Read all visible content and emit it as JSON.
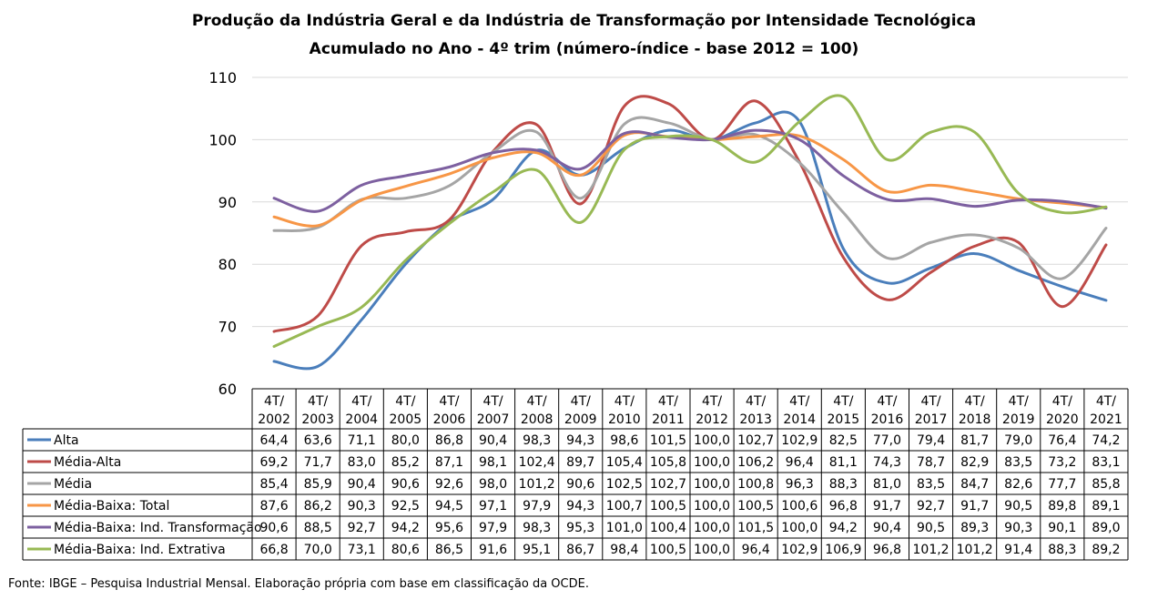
{
  "title_line1": "Produção da Indústria Geral e da Indústria de Transformação por Intensidade Tecnológica",
  "title_line2": "Acumulado no Ano - 4º trim (número-índice - base 2012 = 100)",
  "source": "Fonte: IBGE – Pesquisa Industrial Mensal. Elaboração própria com base em classificação da OCDE.",
  "chart_data": {
    "type": "line",
    "title": "Produção da Indústria Geral e da Indústria de Transformação por Intensidade Tecnológica",
    "subtitle": "Acumulado no Ano - 4º trim (número-índice - base 2012 = 100)",
    "xlabel": "",
    "ylabel": "",
    "ylim": [
      60,
      110
    ],
    "yticks": [
      60,
      70,
      80,
      90,
      100,
      110
    ],
    "grid": true,
    "legend": "data-table",
    "categories": [
      "4T/ 2002",
      "4T/ 2003",
      "4T/ 2004",
      "4T/ 2005",
      "4T/ 2006",
      "4T/ 2007",
      "4T/ 2008",
      "4T/ 2009",
      "4T/ 2010",
      "4T/ 2011",
      "4T/ 2012",
      "4T/ 2013",
      "4T/ 2014",
      "4T/ 2015",
      "4T/ 2016",
      "4T/ 2017",
      "4T/ 2018",
      "4T/ 2019",
      "4T/ 2020",
      "4T/ 2021"
    ],
    "category_lines": [
      [
        "4T/",
        "2002"
      ],
      [
        "4T/",
        "2003"
      ],
      [
        "4T/",
        "2004"
      ],
      [
        "4T/",
        "2005"
      ],
      [
        "4T/",
        "2006"
      ],
      [
        "4T/",
        "2007"
      ],
      [
        "4T/",
        "2008"
      ],
      [
        "4T/",
        "2009"
      ],
      [
        "4T/",
        "2010"
      ],
      [
        "4T/",
        "2011"
      ],
      [
        "4T/",
        "2012"
      ],
      [
        "4T/",
        "2013"
      ],
      [
        "4T/",
        "2014"
      ],
      [
        "4T/",
        "2015"
      ],
      [
        "4T/",
        "2016"
      ],
      [
        "4T/",
        "2017"
      ],
      [
        "4T/",
        "2018"
      ],
      [
        "4T/",
        "2019"
      ],
      [
        "4T/",
        "2020"
      ],
      [
        "4T/",
        "2021"
      ]
    ],
    "series": [
      {
        "name": "Alta",
        "color": "#4a7ebb",
        "values": [
          64.4,
          63.6,
          71.1,
          80.0,
          86.8,
          90.4,
          98.3,
          94.3,
          98.6,
          101.5,
          100.0,
          102.7,
          102.9,
          82.5,
          77.0,
          79.4,
          81.7,
          79.0,
          76.4,
          74.2
        ],
        "labels": [
          "64,4",
          "63,6",
          "71,1",
          "80,0",
          "86,8",
          "90,4",
          "98,3",
          "94,3",
          "98,6",
          "101,5",
          "100,0",
          "102,7",
          "102,9",
          "82,5",
          "77,0",
          "79,4",
          "81,7",
          "79,0",
          "76,4",
          "74,2"
        ]
      },
      {
        "name": "Média-Alta",
        "color": "#be4b48",
        "values": [
          69.2,
          71.7,
          83.0,
          85.2,
          87.1,
          98.1,
          102.4,
          89.7,
          105.4,
          105.8,
          100.0,
          106.2,
          96.4,
          81.1,
          74.3,
          78.7,
          82.9,
          83.5,
          73.2,
          83.1
        ],
        "labels": [
          "69,2",
          "71,7",
          "83,0",
          "85,2",
          "87,1",
          "98,1",
          "102,4",
          "89,7",
          "105,4",
          "105,8",
          "100,0",
          "106,2",
          "96,4",
          "81,1",
          "74,3",
          "78,7",
          "82,9",
          "83,5",
          "73,2",
          "83,1"
        ]
      },
      {
        "name": "Média",
        "color": "#a5a5a5",
        "values": [
          85.4,
          85.9,
          90.4,
          90.6,
          92.6,
          98.0,
          101.2,
          90.6,
          102.5,
          102.7,
          100.0,
          100.8,
          96.3,
          88.3,
          81.0,
          83.5,
          84.7,
          82.6,
          77.7,
          85.8
        ],
        "labels": [
          "85,4",
          "85,9",
          "90,4",
          "90,6",
          "92,6",
          "98,0",
          "101,2",
          "90,6",
          "102,5",
          "102,7",
          "100,0",
          "100,8",
          "96,3",
          "88,3",
          "81,0",
          "83,5",
          "84,7",
          "82,6",
          "77,7",
          "85,8"
        ]
      },
      {
        "name": "Média-Baixa: Total",
        "color": "#f79646",
        "values": [
          87.6,
          86.2,
          90.3,
          92.5,
          94.5,
          97.1,
          97.9,
          94.3,
          100.7,
          100.5,
          100.0,
          100.5,
          100.6,
          96.8,
          91.7,
          92.7,
          91.7,
          90.5,
          89.8,
          89.1
        ],
        "labels": [
          "87,6",
          "86,2",
          "90,3",
          "92,5",
          "94,5",
          "97,1",
          "97,9",
          "94,3",
          "100,7",
          "100,5",
          "100,0",
          "100,5",
          "100,6",
          "96,8",
          "91,7",
          "92,7",
          "91,7",
          "90,5",
          "89,8",
          "89,1"
        ]
      },
      {
        "name": "Média-Baixa: Ind. Transformação",
        "color": "#7d60a0",
        "values": [
          90.6,
          88.5,
          92.7,
          94.2,
          95.6,
          97.9,
          98.3,
          95.3,
          101.0,
          100.4,
          100.0,
          101.5,
          100.0,
          94.2,
          90.4,
          90.5,
          89.3,
          90.3,
          90.1,
          89.0
        ],
        "labels": [
          "90,6",
          "88,5",
          "92,7",
          "94,2",
          "95,6",
          "97,9",
          "98,3",
          "95,3",
          "101,0",
          "100,4",
          "100,0",
          "101,5",
          "100,0",
          "94,2",
          "90,4",
          "90,5",
          "89,3",
          "90,3",
          "90,1",
          "89,0"
        ]
      },
      {
        "name": "Média-Baixa: Ind. Extrativa",
        "color": "#98b954",
        "values": [
          66.8,
          70.0,
          73.1,
          80.6,
          86.5,
          91.6,
          95.1,
          86.7,
          98.4,
          100.5,
          100.0,
          96.4,
          102.9,
          106.9,
          96.8,
          101.2,
          101.2,
          91.4,
          88.3,
          89.2
        ],
        "labels": [
          "66,8",
          "70,0",
          "73,1",
          "80,6",
          "86,5",
          "91,6",
          "95,1",
          "86,7",
          "98,4",
          "100,5",
          "100,0",
          "96,4",
          "102,9",
          "106,9",
          "96,8",
          "101,2",
          "101,2",
          "91,4",
          "88,3",
          "89,2"
        ]
      }
    ]
  }
}
